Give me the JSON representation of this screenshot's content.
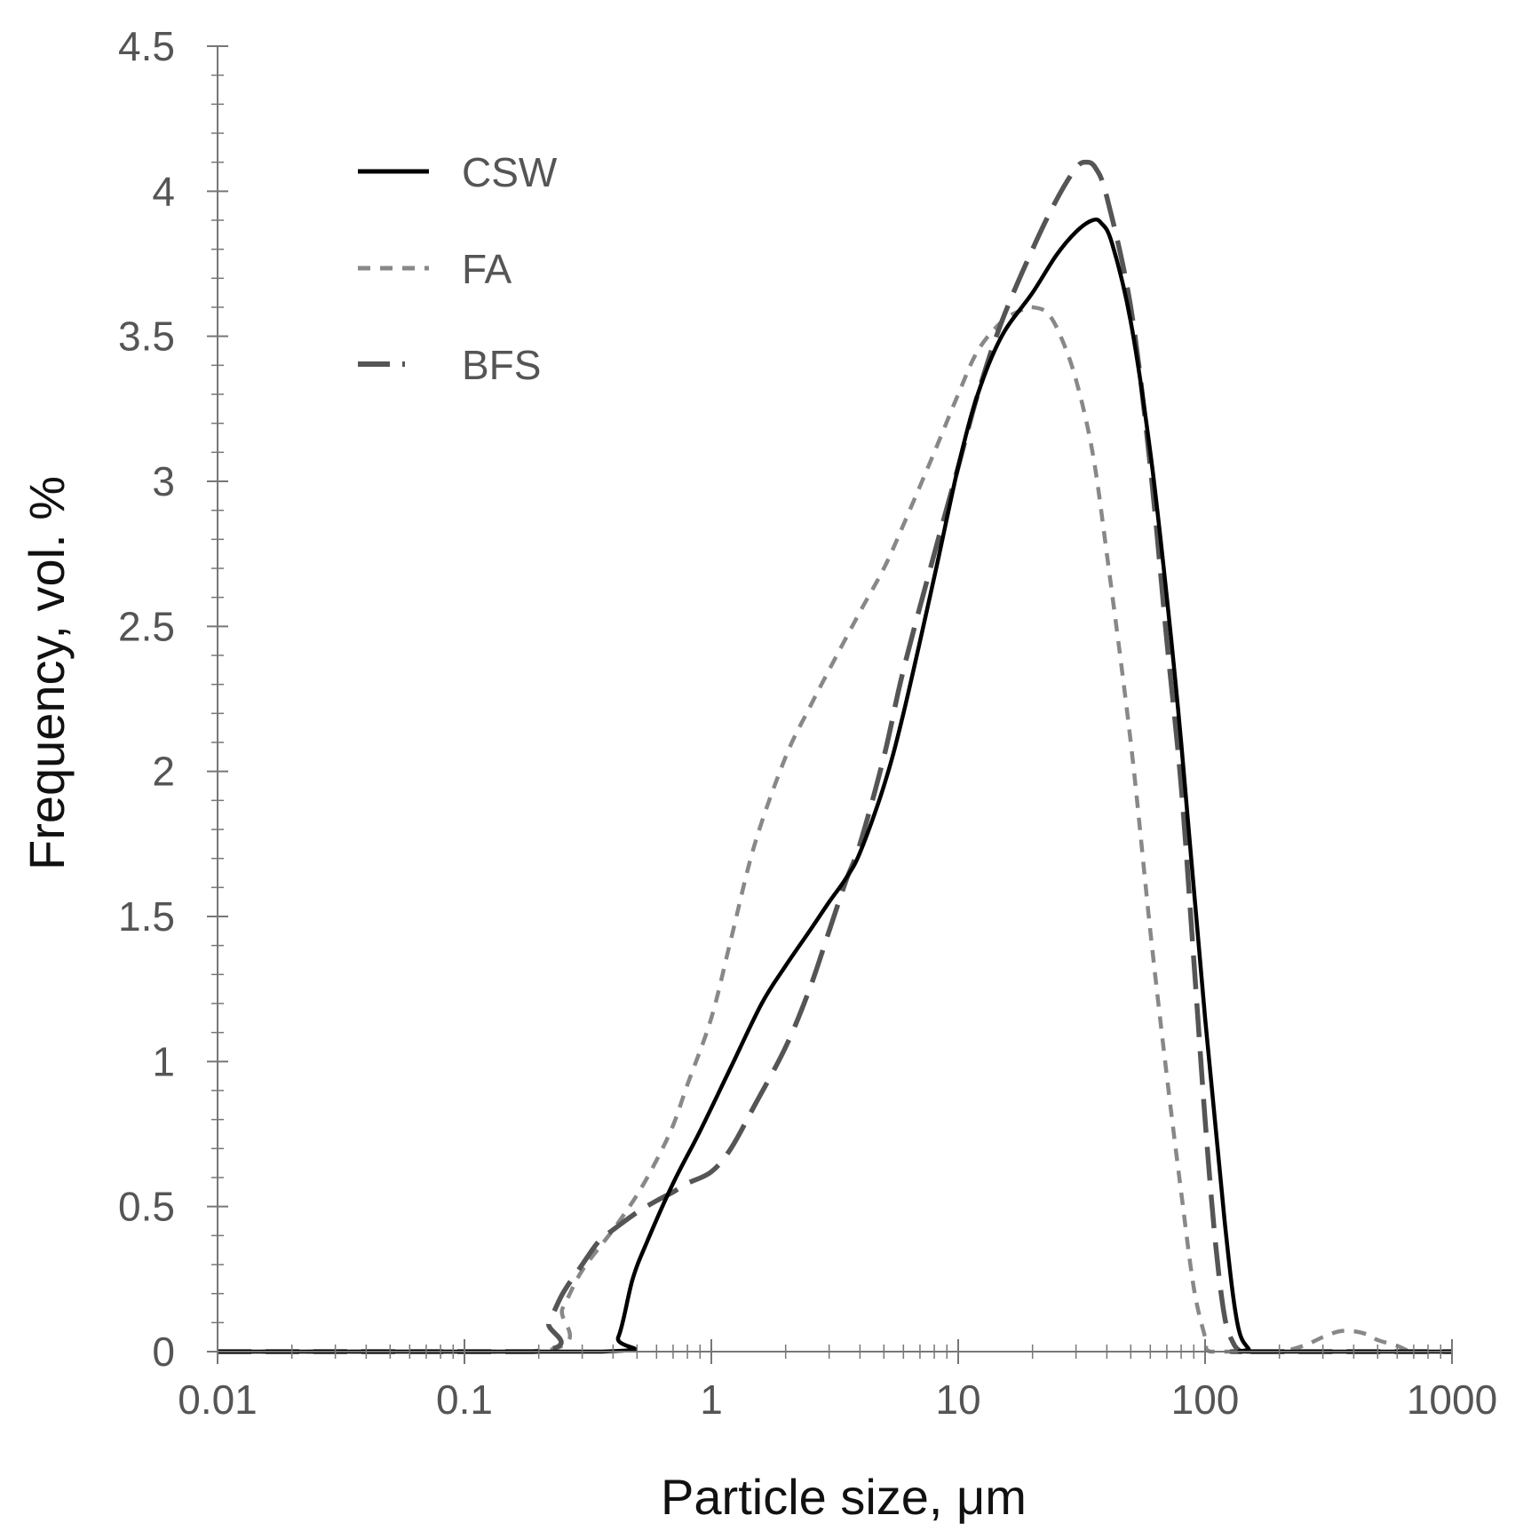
{
  "chart_data": {
    "type": "line",
    "xlabel": "Particle size, μm",
    "ylabel": "Frequency, vol. %",
    "x_scale": "log",
    "xlim": [
      0.01,
      1000
    ],
    "ylim": [
      0,
      4.5
    ],
    "x_ticks": [
      "0.01",
      "0.1",
      "1",
      "10",
      "100",
      "1000"
    ],
    "y_ticks": [
      "0",
      "0.5",
      "1",
      "1.5",
      "2",
      "2.5",
      "3",
      "3.5",
      "4",
      "4.5"
    ],
    "grid": false,
    "legend_position": "top-left",
    "series": [
      {
        "name": "CSW",
        "color": "#000000",
        "dash": "solid",
        "x": [
          0.01,
          0.36,
          0.42,
          0.48,
          0.55,
          0.7,
          0.9,
          1.2,
          1.6,
          2.0,
          2.5,
          3.0,
          3.5,
          4.0,
          5.0,
          6.0,
          8.0,
          10.0,
          12.0,
          15.0,
          20.0,
          25.0,
          30.0,
          35.0,
          38.0,
          42.0,
          50.0,
          60.0,
          70.0,
          80.0,
          100.0,
          120.0,
          135.0,
          150.0,
          160.0,
          1000.0
        ],
        "y": [
          0,
          0,
          0.05,
          0.25,
          0.38,
          0.58,
          0.76,
          0.98,
          1.2,
          1.33,
          1.45,
          1.55,
          1.63,
          1.72,
          1.95,
          2.2,
          2.67,
          3.05,
          3.3,
          3.5,
          3.65,
          3.78,
          3.86,
          3.9,
          3.89,
          3.82,
          3.55,
          3.1,
          2.6,
          2.1,
          1.15,
          0.45,
          0.1,
          0.01,
          0,
          0
        ]
      },
      {
        "name": "FA",
        "color": "#888888",
        "dash": "short",
        "x": [
          0.01,
          0.2,
          0.25,
          0.3,
          0.4,
          0.5,
          0.6,
          0.7,
          0.8,
          1.0,
          1.2,
          1.5,
          2.0,
          2.5,
          3.0,
          4.0,
          5.0,
          6.0,
          8.0,
          10.0,
          12.0,
          15.0,
          18.0,
          20.0,
          23.0,
          26.0,
          30.0,
          35.0,
          40.0,
          50.0,
          60.0,
          70.0,
          80.0,
          90.0,
          100.0,
          105.0,
          150.0,
          200.0,
          250.0,
          300.0,
          350.0,
          400.0,
          450.0,
          500.0,
          600.0,
          700.0,
          1000.0
        ],
        "y": [
          0,
          0,
          0.15,
          0.28,
          0.42,
          0.54,
          0.66,
          0.78,
          0.92,
          1.15,
          1.42,
          1.75,
          2.05,
          2.22,
          2.35,
          2.55,
          2.7,
          2.85,
          3.1,
          3.3,
          3.45,
          3.55,
          3.59,
          3.6,
          3.58,
          3.5,
          3.35,
          3.1,
          2.75,
          2.1,
          1.45,
          0.95,
          0.55,
          0.22,
          0.05,
          0,
          0,
          0,
          0.02,
          0.05,
          0.07,
          0.07,
          0.06,
          0.04,
          0.02,
          0,
          0
        ]
      },
      {
        "name": "BFS",
        "color": "#555555",
        "dash": "long",
        "x": [
          0.01,
          0.19,
          0.22,
          0.25,
          0.3,
          0.35,
          0.4,
          0.5,
          0.6,
          0.7,
          0.8,
          1.0,
          1.2,
          1.5,
          2.0,
          2.5,
          3.0,
          3.5,
          4.0,
          5.0,
          6.0,
          8.0,
          10.0,
          12.0,
          15.0,
          20.0,
          25.0,
          30.0,
          33.0,
          36.0,
          40.0,
          50.0,
          60.0,
          70.0,
          80.0,
          90.0,
          100.0,
          110.0,
          120.0,
          130.0,
          140.0,
          150.0,
          1000.0
        ],
        "y": [
          0,
          0,
          0.1,
          0.2,
          0.3,
          0.38,
          0.42,
          0.48,
          0.52,
          0.55,
          0.58,
          0.62,
          0.7,
          0.85,
          1.05,
          1.25,
          1.45,
          1.62,
          1.75,
          2.05,
          2.35,
          2.75,
          3.05,
          3.3,
          3.55,
          3.8,
          3.97,
          4.08,
          4.1,
          4.08,
          3.98,
          3.6,
          3.05,
          2.45,
          1.95,
          1.35,
          0.8,
          0.38,
          0.12,
          0.03,
          0,
          0,
          0
        ]
      }
    ]
  }
}
